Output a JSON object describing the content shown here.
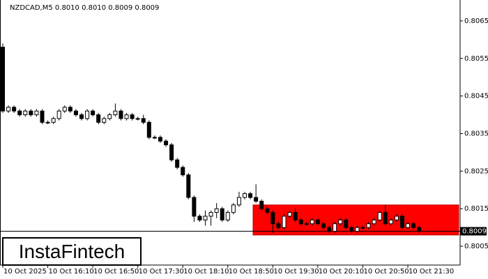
{
  "chart_data": {
    "type": "candlestick",
    "title": "NZDCAD,M5  0.8010 0.8010 0.8009 0.8009",
    "categories": [
      "10 Oct 2025",
      null,
      null,
      null,
      null,
      null,
      null,
      null,
      "10 Oct 16:10",
      null,
      null,
      null,
      null,
      null,
      null,
      null,
      "10 Oct 16:50",
      null,
      null,
      null,
      null,
      null,
      null,
      null,
      "10 Oct 17:30",
      null,
      null,
      null,
      null,
      null,
      null,
      null,
      "10 Oct 18:10",
      null,
      null,
      null,
      null,
      null,
      null,
      null,
      "10 Oct 18:50",
      null,
      null,
      null,
      null,
      null,
      null,
      null,
      "10 Oct 19:30",
      null,
      null,
      null,
      null,
      null,
      null,
      null,
      "10 Oct 20:10",
      null,
      null,
      null,
      null,
      null,
      null,
      null,
      "10 Oct 20:50",
      null,
      null,
      null,
      null,
      null,
      null,
      null,
      "10 Oct 21:30",
      null,
      null
    ],
    "open": [
      0.8058,
      0.8041,
      0.8042,
      0.8041,
      0.804,
      0.8041,
      0.804,
      0.8041,
      0.8038,
      0.8038,
      0.8039,
      0.8041,
      0.8042,
      0.8041,
      0.804,
      0.8039,
      0.8041,
      0.804,
      0.8038,
      0.8039,
      0.804,
      0.8041,
      0.8039,
      0.804,
      0.8039,
      0.8039,
      0.8038,
      0.8034,
      0.8034,
      0.8033,
      0.8032,
      0.8028,
      0.8026,
      0.8024,
      0.8018,
      0.8013,
      0.8012,
      0.8013,
      0.8014,
      0.8015,
      0.8012,
      0.8014,
      0.8016,
      0.8018,
      0.8019,
      0.8018,
      0.8017,
      0.8015,
      0.8014,
      0.8011,
      0.801,
      0.8013,
      0.8014,
      0.8012,
      0.8011,
      0.8011,
      0.8012,
      0.8011,
      0.801,
      0.8009,
      0.8011,
      0.8012,
      0.801,
      0.8009,
      0.801,
      0.801,
      0.8011,
      0.8012,
      0.8014,
      0.8011,
      0.8012,
      0.8013,
      0.801,
      0.8011,
      0.801
    ],
    "high": [
      0.8059,
      0.80425,
      0.80425,
      0.80415,
      0.80415,
      0.80415,
      0.80415,
      0.80415,
      0.80385,
      0.80395,
      0.80415,
      0.80425,
      0.80425,
      0.80415,
      0.80405,
      0.80415,
      0.80415,
      0.80405,
      0.80395,
      0.80405,
      0.8043,
      0.80415,
      0.80405,
      0.80405,
      0.80395,
      0.804,
      0.80385,
      0.80345,
      0.80345,
      0.80335,
      0.80325,
      0.80285,
      0.80265,
      0.80245,
      0.80185,
      0.80135,
      0.80145,
      0.80145,
      0.80165,
      0.80155,
      0.80145,
      0.80165,
      0.80195,
      0.80195,
      0.80195,
      0.80215,
      0.80175,
      0.80155,
      0.80145,
      0.80115,
      0.80135,
      0.80145,
      0.8015,
      0.80125,
      0.80115,
      0.80125,
      0.80125,
      0.80115,
      0.80105,
      0.80115,
      0.80125,
      0.80125,
      0.80105,
      0.80105,
      0.80105,
      0.80115,
      0.80125,
      0.80145,
      0.8016,
      0.80125,
      0.80135,
      0.80135,
      0.80115,
      0.80115,
      0.80105
    ],
    "low": [
      0.80405,
      0.80405,
      0.80405,
      0.80395,
      0.80395,
      0.80395,
      0.80395,
      0.80375,
      0.80375,
      0.80375,
      0.80385,
      0.80405,
      0.80405,
      0.80395,
      0.80385,
      0.80385,
      0.80395,
      0.80375,
      0.80375,
      0.80385,
      0.80395,
      0.80385,
      0.80385,
      0.80385,
      0.80385,
      0.80375,
      0.80335,
      0.80335,
      0.80325,
      0.80315,
      0.80275,
      0.80255,
      0.80235,
      0.80175,
      0.80115,
      0.80115,
      0.80105,
      0.80105,
      0.80125,
      0.80115,
      0.80115,
      0.80135,
      0.80155,
      0.80175,
      0.80175,
      0.80165,
      0.80145,
      0.80135,
      0.80085,
      0.80095,
      0.80095,
      0.80125,
      0.80115,
      0.80105,
      0.80105,
      0.80105,
      0.80105,
      0.80095,
      0.80085,
      0.80085,
      0.80105,
      0.80095,
      0.80085,
      0.80085,
      0.80095,
      0.80095,
      0.80105,
      0.80115,
      0.80105,
      0.80105,
      0.80115,
      0.80095,
      0.80095,
      0.80095,
      0.80085
    ],
    "close": [
      0.8041,
      0.8042,
      0.8041,
      0.804,
      0.8041,
      0.804,
      0.8041,
      0.8038,
      0.8038,
      0.8039,
      0.8041,
      0.8042,
      0.8041,
      0.804,
      0.8039,
      0.8041,
      0.804,
      0.8038,
      0.8039,
      0.804,
      0.8041,
      0.8039,
      0.804,
      0.8039,
      0.8039,
      0.8038,
      0.8034,
      0.8034,
      0.8033,
      0.8032,
      0.8028,
      0.8026,
      0.8024,
      0.8018,
      0.8013,
      0.8012,
      0.8013,
      0.8014,
      0.8015,
      0.8012,
      0.8014,
      0.8016,
      0.8018,
      0.8019,
      0.8018,
      0.8017,
      0.8015,
      0.8014,
      0.8011,
      0.801,
      0.8013,
      0.8014,
      0.8012,
      0.8011,
      0.8011,
      0.8012,
      0.8011,
      0.801,
      0.8009,
      0.8011,
      0.8012,
      0.801,
      0.8009,
      0.801,
      0.801,
      0.8011,
      0.8012,
      0.8014,
      0.8011,
      0.8012,
      0.8013,
      0.801,
      0.8011,
      0.801,
      0.8009
    ],
    "up_color": "#ffffff",
    "down_color": "#000000",
    "ylim": [
      0.8,
      0.807
    ],
    "yticks": [
      0.8005,
      0.8015,
      0.8025,
      0.8035,
      0.8045,
      0.8055,
      0.8065
    ],
    "current_price": 0.8009,
    "zone": {
      "top": 0.8016,
      "bottom": 0.8008,
      "color": "#ff0000"
    }
  },
  "logo": "InstaFintech"
}
